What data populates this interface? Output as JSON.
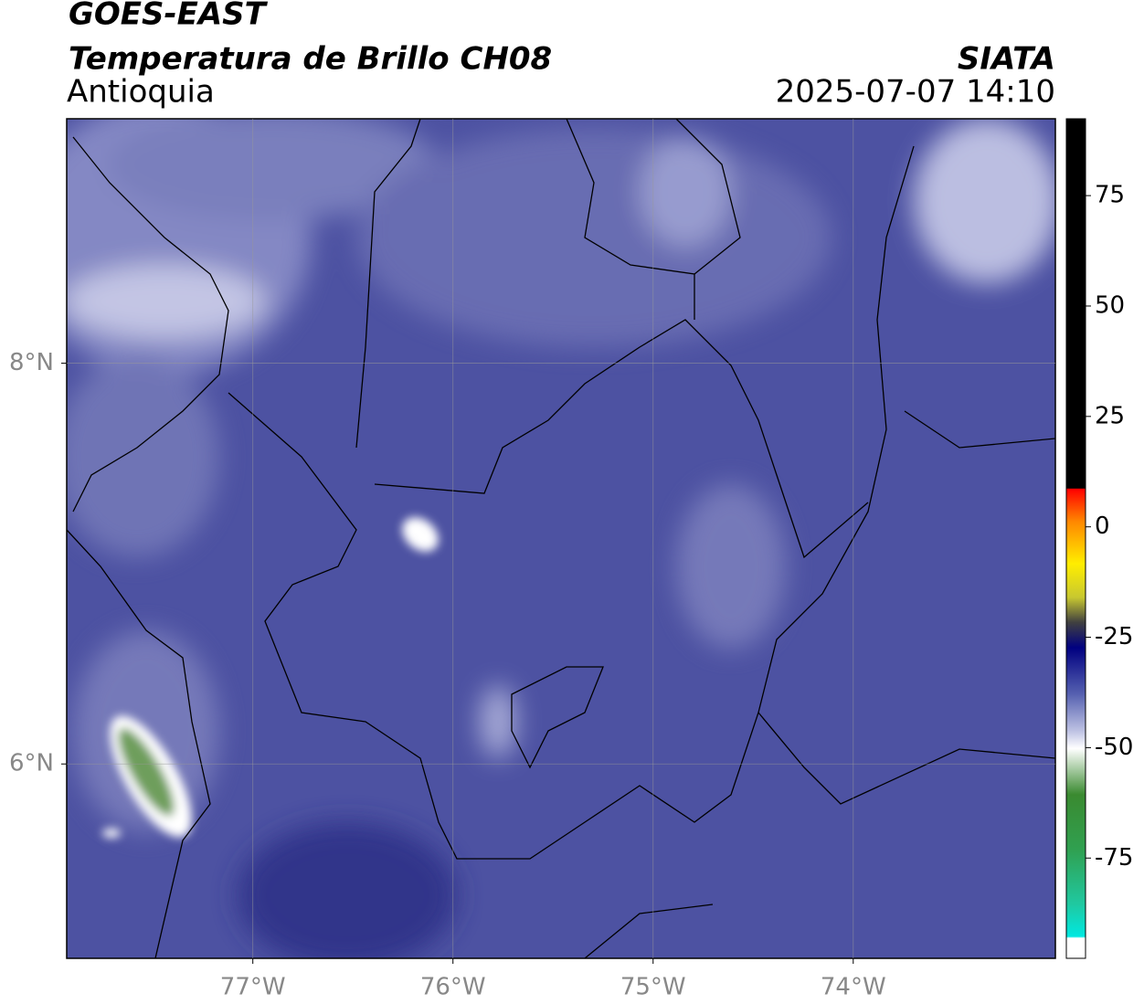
{
  "header": {
    "title": "GOES-EAST",
    "subtitle": "Temperatura de Brillo CH08",
    "region": "Antioquia",
    "source": "SIATA",
    "datetime": "2025-07-07 14:10"
  },
  "map": {
    "lonlim": [
      -77.93,
      -72.99
    ],
    "latlim": [
      5.03,
      9.22
    ],
    "lon_ticks": [
      {
        "value": -77,
        "label": "77°W"
      },
      {
        "value": -76,
        "label": "76°W"
      },
      {
        "value": -75,
        "label": "75°W"
      },
      {
        "value": -74,
        "label": "74°W"
      }
    ],
    "lat_ticks": [
      {
        "value": 8,
        "label": "8°N"
      },
      {
        "value": 6,
        "label": "6°N"
      }
    ]
  },
  "colorbar": {
    "lim": [
      -97.7,
      92.4
    ],
    "ticks": [
      75,
      50,
      25,
      0,
      -25,
      -50,
      -75
    ]
  }
}
